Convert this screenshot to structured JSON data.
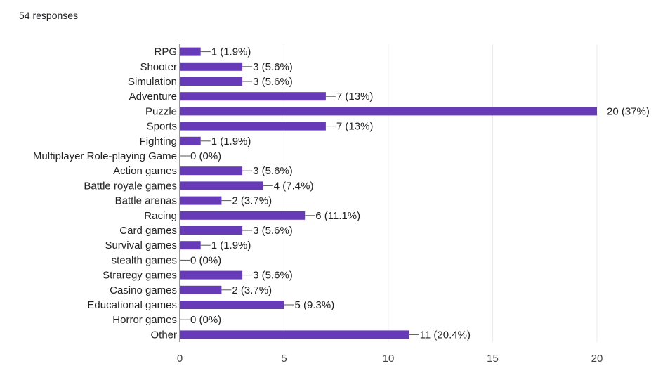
{
  "header": {
    "responses_label": "54 responses"
  },
  "colors": {
    "bar": "#673ab7",
    "grid": "#ebebeb",
    "axis": "#333333",
    "text": "#222222",
    "tick": "#444444"
  },
  "chart_data": {
    "type": "bar",
    "orientation": "horizontal",
    "categories": [
      "RPG",
      "Shooter",
      "Simulation",
      "Adventure",
      "Puzzle",
      "Sports",
      "Fighting",
      "Multiplayer Role-playing Game",
      "Action games",
      "Battle royale games",
      "Battle arenas",
      "Racing",
      "Card games",
      "Survival games",
      "stealth games",
      "Straregy games",
      "Casino games",
      "Educational games",
      "Horror games",
      "Other"
    ],
    "values": [
      1,
      3,
      3,
      7,
      20,
      7,
      1,
      0,
      3,
      4,
      2,
      6,
      3,
      1,
      0,
      3,
      2,
      5,
      0,
      11
    ],
    "value_labels": [
      "1 (1.9%)",
      "3 (5.6%)",
      "3 (5.6%)",
      "7 (13%)",
      "20 (37%)",
      "7 (13%)",
      "1 (1.9%)",
      "0 (0%)",
      "3 (5.6%)",
      "4 (7.4%)",
      "2 (3.7%)",
      "6 (11.1%)",
      "3 (5.6%)",
      "1 (1.9%)",
      "0 (0%)",
      "3 (5.6%)",
      "2 (3.7%)",
      "5 (9.3%)",
      "0 (0%)",
      "11 (20.4%)"
    ],
    "xlim": [
      0,
      20
    ],
    "xticks": [
      0,
      5,
      10,
      15,
      20
    ],
    "grid": true,
    "legend": "none"
  }
}
